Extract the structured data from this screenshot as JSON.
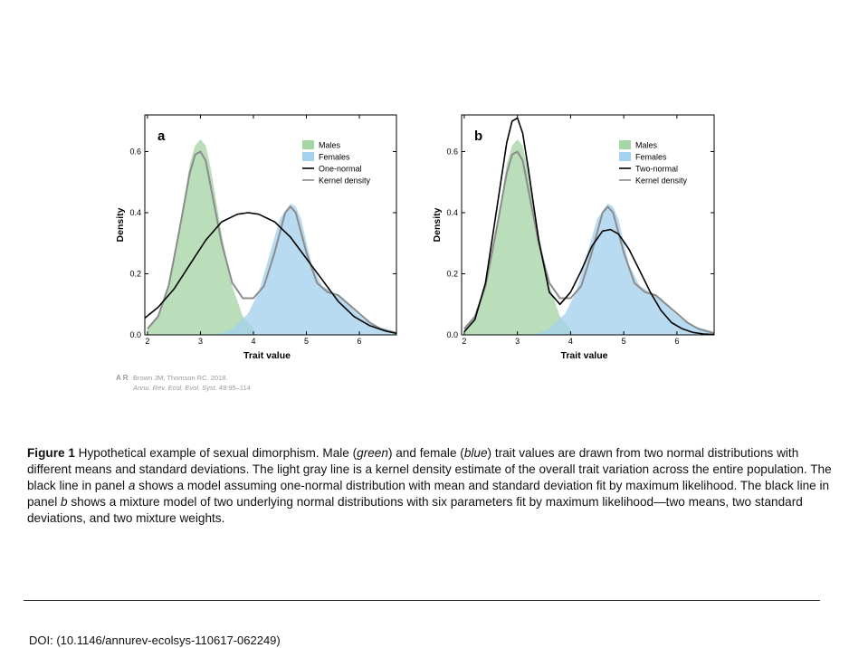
{
  "chart_data": [
    {
      "type": "area",
      "panel_label": "a",
      "xlabel": "Trait value",
      "ylabel": "Density",
      "xlim": [
        1.95,
        6.7
      ],
      "ylim": [
        0,
        0.72
      ],
      "xticks": [
        2,
        3,
        4,
        5,
        6
      ],
      "yticks": [
        0.0,
        0.2,
        0.4,
        0.6
      ],
      "ytick_labels": [
        "0.0",
        "0.2",
        "0.4",
        "0.6"
      ],
      "legend_position": "top-right",
      "legend": [
        {
          "label": "Males",
          "kind": "fill",
          "color": "#a6d5a6"
        },
        {
          "label": "Females",
          "kind": "fill",
          "color": "#a4d1ed"
        },
        {
          "label": "One-normal",
          "kind": "line",
          "color": "#000000"
        },
        {
          "label": "Kernel density",
          "kind": "line",
          "color": "#8c8c8c"
        }
      ],
      "series": [
        {
          "name": "Males",
          "kind": "area",
          "color": "#a6d5a6",
          "x": [
            2.0,
            2.2,
            2.4,
            2.6,
            2.8,
            2.9,
            3.0,
            3.1,
            3.2,
            3.4,
            3.6,
            3.8,
            4.0
          ],
          "y": [
            0.02,
            0.06,
            0.16,
            0.34,
            0.56,
            0.62,
            0.64,
            0.62,
            0.54,
            0.33,
            0.16,
            0.06,
            0.02
          ]
        },
        {
          "name": "Females",
          "kind": "area",
          "color": "#a4d1ed",
          "x": [
            3.3,
            3.6,
            3.9,
            4.1,
            4.3,
            4.5,
            4.7,
            4.8,
            4.9,
            5.1,
            5.3,
            5.5,
            5.7,
            5.9,
            6.1,
            6.3,
            6.5,
            6.7
          ],
          "y": [
            0.0,
            0.02,
            0.07,
            0.14,
            0.26,
            0.38,
            0.43,
            0.42,
            0.38,
            0.23,
            0.16,
            0.14,
            0.12,
            0.08,
            0.05,
            0.03,
            0.02,
            0.01
          ]
        },
        {
          "name": "One-normal",
          "kind": "line",
          "color": "#000000",
          "x": [
            1.95,
            2.2,
            2.5,
            2.8,
            3.1,
            3.4,
            3.7,
            3.9,
            4.1,
            4.4,
            4.7,
            5.0,
            5.3,
            5.6,
            5.9,
            6.2,
            6.5,
            6.7
          ],
          "y": [
            0.055,
            0.09,
            0.15,
            0.23,
            0.31,
            0.37,
            0.395,
            0.4,
            0.395,
            0.37,
            0.32,
            0.25,
            0.18,
            0.11,
            0.06,
            0.03,
            0.012,
            0.005
          ]
        },
        {
          "name": "Kernel density",
          "kind": "line",
          "color": "#8c8c8c",
          "x": [
            2.0,
            2.2,
            2.4,
            2.6,
            2.8,
            2.9,
            3.0,
            3.1,
            3.2,
            3.4,
            3.6,
            3.8,
            4.0,
            4.2,
            4.4,
            4.6,
            4.7,
            4.8,
            5.0,
            5.2,
            5.4,
            5.6,
            5.8,
            6.0,
            6.2,
            6.4,
            6.6,
            6.7
          ],
          "y": [
            0.02,
            0.06,
            0.16,
            0.34,
            0.53,
            0.59,
            0.6,
            0.57,
            0.48,
            0.3,
            0.17,
            0.12,
            0.12,
            0.16,
            0.27,
            0.4,
            0.42,
            0.4,
            0.27,
            0.17,
            0.14,
            0.13,
            0.1,
            0.07,
            0.04,
            0.02,
            0.01,
            0.005
          ]
        }
      ]
    },
    {
      "type": "area",
      "panel_label": "b",
      "xlabel": "Trait value",
      "ylabel": "Density",
      "xlim": [
        1.95,
        6.7
      ],
      "ylim": [
        0,
        0.72
      ],
      "xticks": [
        2,
        3,
        4,
        5,
        6
      ],
      "yticks": [
        0.0,
        0.2,
        0.4,
        0.6
      ],
      "ytick_labels": [
        "0.0",
        "0.2",
        "0.4",
        "0.6"
      ],
      "legend_position": "top-right",
      "legend": [
        {
          "label": "Males",
          "kind": "fill",
          "color": "#a6d5a6"
        },
        {
          "label": "Females",
          "kind": "fill",
          "color": "#a4d1ed"
        },
        {
          "label": "Two-normal",
          "kind": "line",
          "color": "#000000"
        },
        {
          "label": "Kernel density",
          "kind": "line",
          "color": "#8c8c8c"
        }
      ],
      "series": [
        {
          "name": "Males",
          "kind": "area",
          "color": "#a6d5a6",
          "x": [
            2.0,
            2.2,
            2.4,
            2.6,
            2.8,
            2.9,
            3.0,
            3.1,
            3.2,
            3.4,
            3.6,
            3.8,
            4.0
          ],
          "y": [
            0.02,
            0.06,
            0.16,
            0.34,
            0.56,
            0.62,
            0.64,
            0.62,
            0.54,
            0.33,
            0.16,
            0.06,
            0.02
          ]
        },
        {
          "name": "Females",
          "kind": "area",
          "color": "#a4d1ed",
          "x": [
            3.3,
            3.6,
            3.9,
            4.1,
            4.3,
            4.5,
            4.7,
            4.8,
            4.9,
            5.1,
            5.3,
            5.5,
            5.7,
            5.9,
            6.1,
            6.3,
            6.5,
            6.7
          ],
          "y": [
            0.0,
            0.02,
            0.07,
            0.14,
            0.26,
            0.38,
            0.43,
            0.42,
            0.38,
            0.23,
            0.16,
            0.14,
            0.12,
            0.08,
            0.05,
            0.03,
            0.02,
            0.01
          ]
        },
        {
          "name": "Two-normal",
          "kind": "line",
          "color": "#000000",
          "x": [
            2.0,
            2.2,
            2.4,
            2.6,
            2.8,
            2.9,
            3.0,
            3.1,
            3.2,
            3.4,
            3.6,
            3.8,
            4.0,
            4.2,
            4.4,
            4.6,
            4.75,
            4.9,
            5.1,
            5.3,
            5.5,
            5.7,
            5.9,
            6.1,
            6.3,
            6.5,
            6.7
          ],
          "y": [
            0.01,
            0.05,
            0.17,
            0.4,
            0.63,
            0.7,
            0.71,
            0.66,
            0.55,
            0.31,
            0.14,
            0.1,
            0.14,
            0.21,
            0.29,
            0.34,
            0.345,
            0.33,
            0.28,
            0.21,
            0.14,
            0.08,
            0.04,
            0.02,
            0.008,
            0.003,
            0.001
          ]
        },
        {
          "name": "Kernel density",
          "kind": "line",
          "color": "#8c8c8c",
          "x": [
            2.0,
            2.2,
            2.4,
            2.6,
            2.8,
            2.9,
            3.0,
            3.1,
            3.2,
            3.4,
            3.6,
            3.8,
            4.0,
            4.2,
            4.4,
            4.6,
            4.7,
            4.8,
            5.0,
            5.2,
            5.4,
            5.6,
            5.8,
            6.0,
            6.2,
            6.4,
            6.6,
            6.7
          ],
          "y": [
            0.02,
            0.06,
            0.16,
            0.34,
            0.53,
            0.59,
            0.6,
            0.57,
            0.48,
            0.3,
            0.17,
            0.12,
            0.12,
            0.16,
            0.27,
            0.4,
            0.42,
            0.4,
            0.27,
            0.17,
            0.14,
            0.13,
            0.1,
            0.07,
            0.04,
            0.02,
            0.01,
            0.005
          ]
        }
      ]
    }
  ],
  "credit": {
    "logo": "A R",
    "line1": "Brown JM, Thomson RC. 2018.",
    "journal": "Annu. Rev. Ecol. Evol. Syst.",
    "pages": " 49:95–114"
  },
  "caption": {
    "label": "Figure 1",
    "p1": "  Hypothetical example of sexual dimorphism. Male (",
    "green": "green",
    "p2": ") and female (",
    "blue": "blue",
    "p3": ") trait values are drawn from two normal distributions with different means and standard deviations. The light gray line is a kernel density estimate of the overall trait variation across the entire population. The black line in panel ",
    "a": "a",
    "p4": " shows a model assuming one-normal distribution with mean and standard deviation fit by maximum likelihood. The black line in panel ",
    "b": "b",
    "p5": " shows a mixture model of two underlying normal distributions with six parameters fit by maximum likelihood—two means, two standard deviations, and two mixture weights."
  },
  "doi": "DOI:  (10.1146/annurev-ecolsys-110617-062249)"
}
